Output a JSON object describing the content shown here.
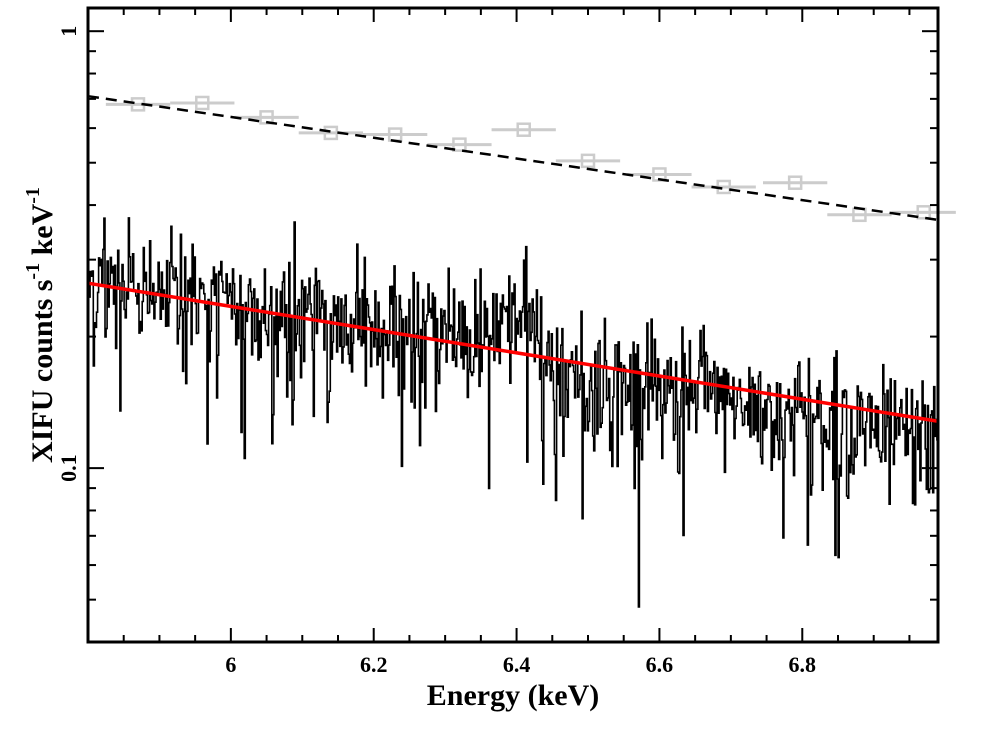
{
  "chart_data": {
    "type": "line",
    "title": "",
    "xlabel": "Energy (keV)",
    "ylabel_parts": {
      "main": "XIFU counts s",
      "exp1": "-1",
      "mid": " keV",
      "exp2": "-1"
    },
    "xlim": [
      5.8,
      6.99
    ],
    "ylim": [
      0.04,
      1.13
    ],
    "yscale": "log",
    "x_ticks": [
      {
        "value": 6.0,
        "label": "6"
      },
      {
        "value": 6.2,
        "label": "6.2"
      },
      {
        "value": 6.4,
        "label": "6.4"
      },
      {
        "value": 6.6,
        "label": "6.6"
      },
      {
        "value": 6.8,
        "label": "6.8"
      }
    ],
    "y_ticks_major": [
      {
        "value": 0.1,
        "label": "0.1"
      },
      {
        "value": 1.0,
        "label": "1"
      }
    ],
    "y_ticks_minor": [
      0.05,
      0.06,
      0.07,
      0.08,
      0.09,
      0.2,
      0.3,
      0.4,
      0.5,
      0.6,
      0.7,
      0.8,
      0.9
    ],
    "series": [
      {
        "name": "grey binned spectrum",
        "style": "errorbar-square",
        "color": "#cccccc",
        "x_halfwidth": 0.045,
        "points": [
          {
            "x": 5.87,
            "y": 0.68
          },
          {
            "x": 5.96,
            "y": 0.685
          },
          {
            "x": 6.05,
            "y": 0.635
          },
          {
            "x": 6.14,
            "y": 0.585
          },
          {
            "x": 6.23,
            "y": 0.58
          },
          {
            "x": 6.32,
            "y": 0.55
          },
          {
            "x": 6.41,
            "y": 0.595
          },
          {
            "x": 6.5,
            "y": 0.505
          },
          {
            "x": 6.6,
            "y": 0.47
          },
          {
            "x": 6.69,
            "y": 0.44
          },
          {
            "x": 6.79,
            "y": 0.45
          },
          {
            "x": 6.88,
            "y": 0.38
          },
          {
            "x": 6.97,
            "y": 0.385
          }
        ]
      },
      {
        "name": "grey model",
        "style": "dashed-line",
        "color": "#000000",
        "x": [
          5.8,
          6.99
        ],
        "y": [
          0.71,
          0.37
        ]
      },
      {
        "name": "black high-resolution spectrum",
        "style": "step-noisy",
        "color": "#000000",
        "bins": 800,
        "continuum_y": [
          0.265,
          0.128
        ],
        "relative_scatter": 0.17,
        "line_feature": {
          "center": 6.41,
          "width": 0.03,
          "amplitude": 0.16
        },
        "edge_feature": {
          "x": 6.43,
          "depth": 0.08
        }
      },
      {
        "name": "red model",
        "style": "line",
        "color": "#ff0000",
        "x": [
          5.8,
          6.99
        ],
        "y": [
          0.265,
          0.128
        ]
      }
    ]
  }
}
